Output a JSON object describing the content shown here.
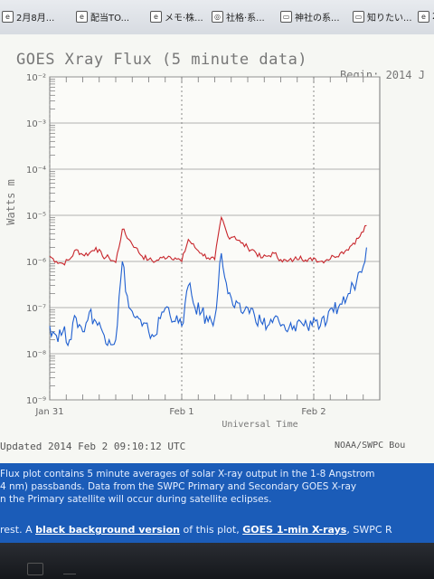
{
  "tabs": [
    {
      "label": "2月8月..."
    },
    {
      "label": "配当TO..."
    },
    {
      "label": "メモ·株..."
    },
    {
      "label": "社格·系..."
    },
    {
      "label": "神社の系..."
    },
    {
      "label": "知りたい..."
    },
    {
      "label": "2"
    }
  ],
  "page": {
    "title": "GOES Xray Flux (5 minute data)",
    "begin": "Begin:  2014 J",
    "updated": "Updated 2014 Feb  2 09:10:12 UTC",
    "credit": "NOAA/SWPC Bou",
    "info_lines": [
      "Flux plot contains 5 minute averages of solar X-ray output in the 1-8 Angstrom",
      "4 nm) passbands. Data from the SWPC Primary and Secondary GOES X-ray",
      "n the Primary satellite will occur during satellite eclipses."
    ],
    "link_prefix": "rest. A ",
    "link_black": "black background version",
    "link_mid": " of this plot, ",
    "link_goes": "GOES 1-min X-rays",
    "link_suffix": ", SWPC R"
  },
  "colors": {
    "long_channel": "#c8262c",
    "short_channel": "#1f5fd0",
    "info_bar": "#1b5cb8"
  },
  "chart_data": {
    "type": "line",
    "title": "GOES Xray Flux (5 minute data)",
    "xlabel": "Universal Time",
    "ylabel": "Watts m",
    "y_scale": "log",
    "ylim": [
      1e-09,
      0.01
    ],
    "y_ticks": [
      "10⁻²",
      "10⁻³",
      "10⁻⁴",
      "10⁻⁵",
      "10⁻⁶",
      "10⁻⁷",
      "10⁻⁸",
      "10⁻⁹"
    ],
    "x_ticks": [
      "Jan 31",
      "Feb 1",
      "Feb 2"
    ],
    "x_range_days": [
      0,
      2.5
    ],
    "grid": true,
    "series": [
      {
        "color": "#c8262c",
        "x": [
          0,
          0.05,
          0.1,
          0.15,
          0.2,
          0.25,
          0.3,
          0.35,
          0.4,
          0.45,
          0.5,
          0.55,
          0.6,
          0.65,
          0.7,
          0.75,
          0.8,
          0.85,
          0.9,
          0.95,
          1.0,
          1.05,
          1.1,
          1.15,
          1.2,
          1.25,
          1.3,
          1.35,
          1.4,
          1.45,
          1.5,
          1.55,
          1.6,
          1.65,
          1.7,
          1.75,
          1.8,
          1.85,
          1.9,
          1.95,
          2.0,
          2.05,
          2.1,
          2.15,
          2.2,
          2.25,
          2.3,
          2.35,
          2.4
        ],
        "y": [
          1.3e-06,
          1e-06,
          9e-07,
          1.1e-06,
          1.8e-06,
          1.4e-06,
          1.5e-06,
          2e-06,
          1.3e-06,
          1.2e-06,
          9.5e-07,
          5e-06,
          3e-06,
          2e-06,
          1.3e-06,
          1.1e-06,
          1e-06,
          1.2e-06,
          1.3e-06,
          1.2e-06,
          1e-06,
          3e-06,
          2e-06,
          1.5e-06,
          1.2e-06,
          1.1e-06,
          9e-06,
          3.5e-06,
          3.5e-06,
          2.5e-06,
          2e-06,
          1.7e-06,
          1.2e-06,
          1.3e-06,
          1.5e-06,
          1.1e-06,
          1e-06,
          1.1e-06,
          1.3e-06,
          1e-06,
          1.2e-06,
          1e-06,
          1.1e-06,
          1.3e-06,
          1.5e-06,
          1.8e-06,
          2.5e-06,
          3.5e-06,
          6e-06
        ]
      },
      {
        "color": "#1f5fd0",
        "x": [
          0,
          0.05,
          0.1,
          0.15,
          0.2,
          0.25,
          0.3,
          0.35,
          0.4,
          0.45,
          0.5,
          0.55,
          0.6,
          0.65,
          0.7,
          0.75,
          0.8,
          0.85,
          0.9,
          0.95,
          1.0,
          1.05,
          1.1,
          1.15,
          1.2,
          1.25,
          1.3,
          1.35,
          1.4,
          1.45,
          1.5,
          1.55,
          1.6,
          1.65,
          1.7,
          1.75,
          1.8,
          1.85,
          1.9,
          1.95,
          2.0,
          2.05,
          2.1,
          2.15,
          2.2,
          2.25,
          2.3,
          2.35,
          2.4
        ],
        "y": [
          4e-08,
          2.5e-08,
          3e-08,
          2e-08,
          6e-08,
          3e-08,
          8e-08,
          5e-08,
          3e-08,
          2e-08,
          2e-08,
          1e-06,
          1e-07,
          6e-08,
          4e-08,
          3e-08,
          2.5e-08,
          8e-08,
          1e-07,
          5e-08,
          4e-08,
          3e-07,
          1e-07,
          8e-08,
          5e-08,
          6e-08,
          1.5e-06,
          2e-07,
          1e-07,
          8e-08,
          1e-07,
          7e-08,
          5e-08,
          4e-08,
          6e-08,
          4e-08,
          3e-08,
          4e-08,
          5e-08,
          4e-08,
          6e-08,
          4e-08,
          5e-08,
          8e-08,
          1.2e-07,
          1.6e-07,
          3e-07,
          6e-07,
          2e-06
        ]
      }
    ]
  }
}
